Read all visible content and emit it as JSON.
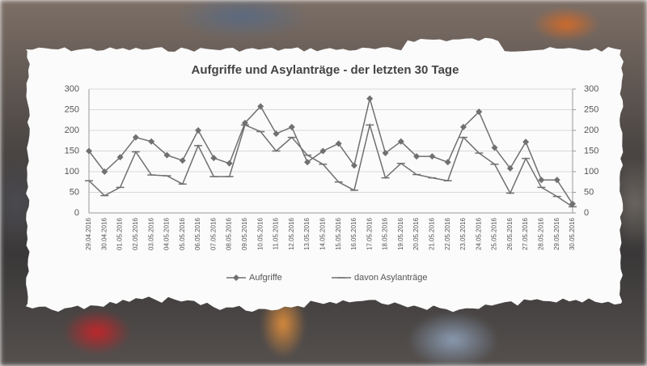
{
  "chart_data": {
    "type": "line",
    "title": "Aufgriffe und Asylanträge - der letzten 30 Tage",
    "categories": [
      "29.04.2016",
      "30.04.2016",
      "01.05.2016",
      "02.05.2016",
      "03.05.2016",
      "04.05.2016",
      "05.05.2016",
      "06.05.2016",
      "07.05.2016",
      "08.05.2016",
      "09.05.2016",
      "10.05.2016",
      "11.05.2016",
      "12.05.2016",
      "13.05.2016",
      "14.05.2016",
      "15.05.2016",
      "16.05.2016",
      "17.05.2016",
      "18.05.2016",
      "19.05.2016",
      "20.05.2016",
      "21.05.2016",
      "22.05.2016",
      "23.05.2016",
      "24.05.2016",
      "25.05.2016",
      "26.05.2016",
      "27.05.2016",
      "28.05.2016",
      "29.05.2016",
      "30.05.2016"
    ],
    "series": [
      {
        "name": "Aufgriffe",
        "color": "#707070",
        "marker": "diamond",
        "values": [
          150,
          100,
          135,
          183,
          173,
          140,
          127,
          200,
          133,
          120,
          218,
          258,
          192,
          208,
          123,
          150,
          168,
          115,
          277,
          145,
          173,
          137,
          137,
          123,
          208,
          245,
          158,
          108,
          172,
          80,
          80,
          22
        ]
      },
      {
        "name": "davon Asylanträge",
        "color": "#707070",
        "marker": "dash",
        "values": [
          78,
          42,
          62,
          148,
          92,
          90,
          70,
          163,
          88,
          88,
          213,
          197,
          150,
          183,
          140,
          118,
          75,
          55,
          213,
          85,
          120,
          93,
          85,
          78,
          183,
          145,
          118,
          48,
          132,
          62,
          40,
          15
        ]
      }
    ],
    "ylim": [
      0,
      300
    ],
    "yticks": [
      0,
      50,
      100,
      150,
      200,
      250,
      300
    ],
    "y2lim": [
      0,
      300
    ],
    "y2ticks": [
      0,
      50,
      100,
      150,
      200,
      250,
      300
    ],
    "grid": true,
    "legend": "bottom"
  }
}
